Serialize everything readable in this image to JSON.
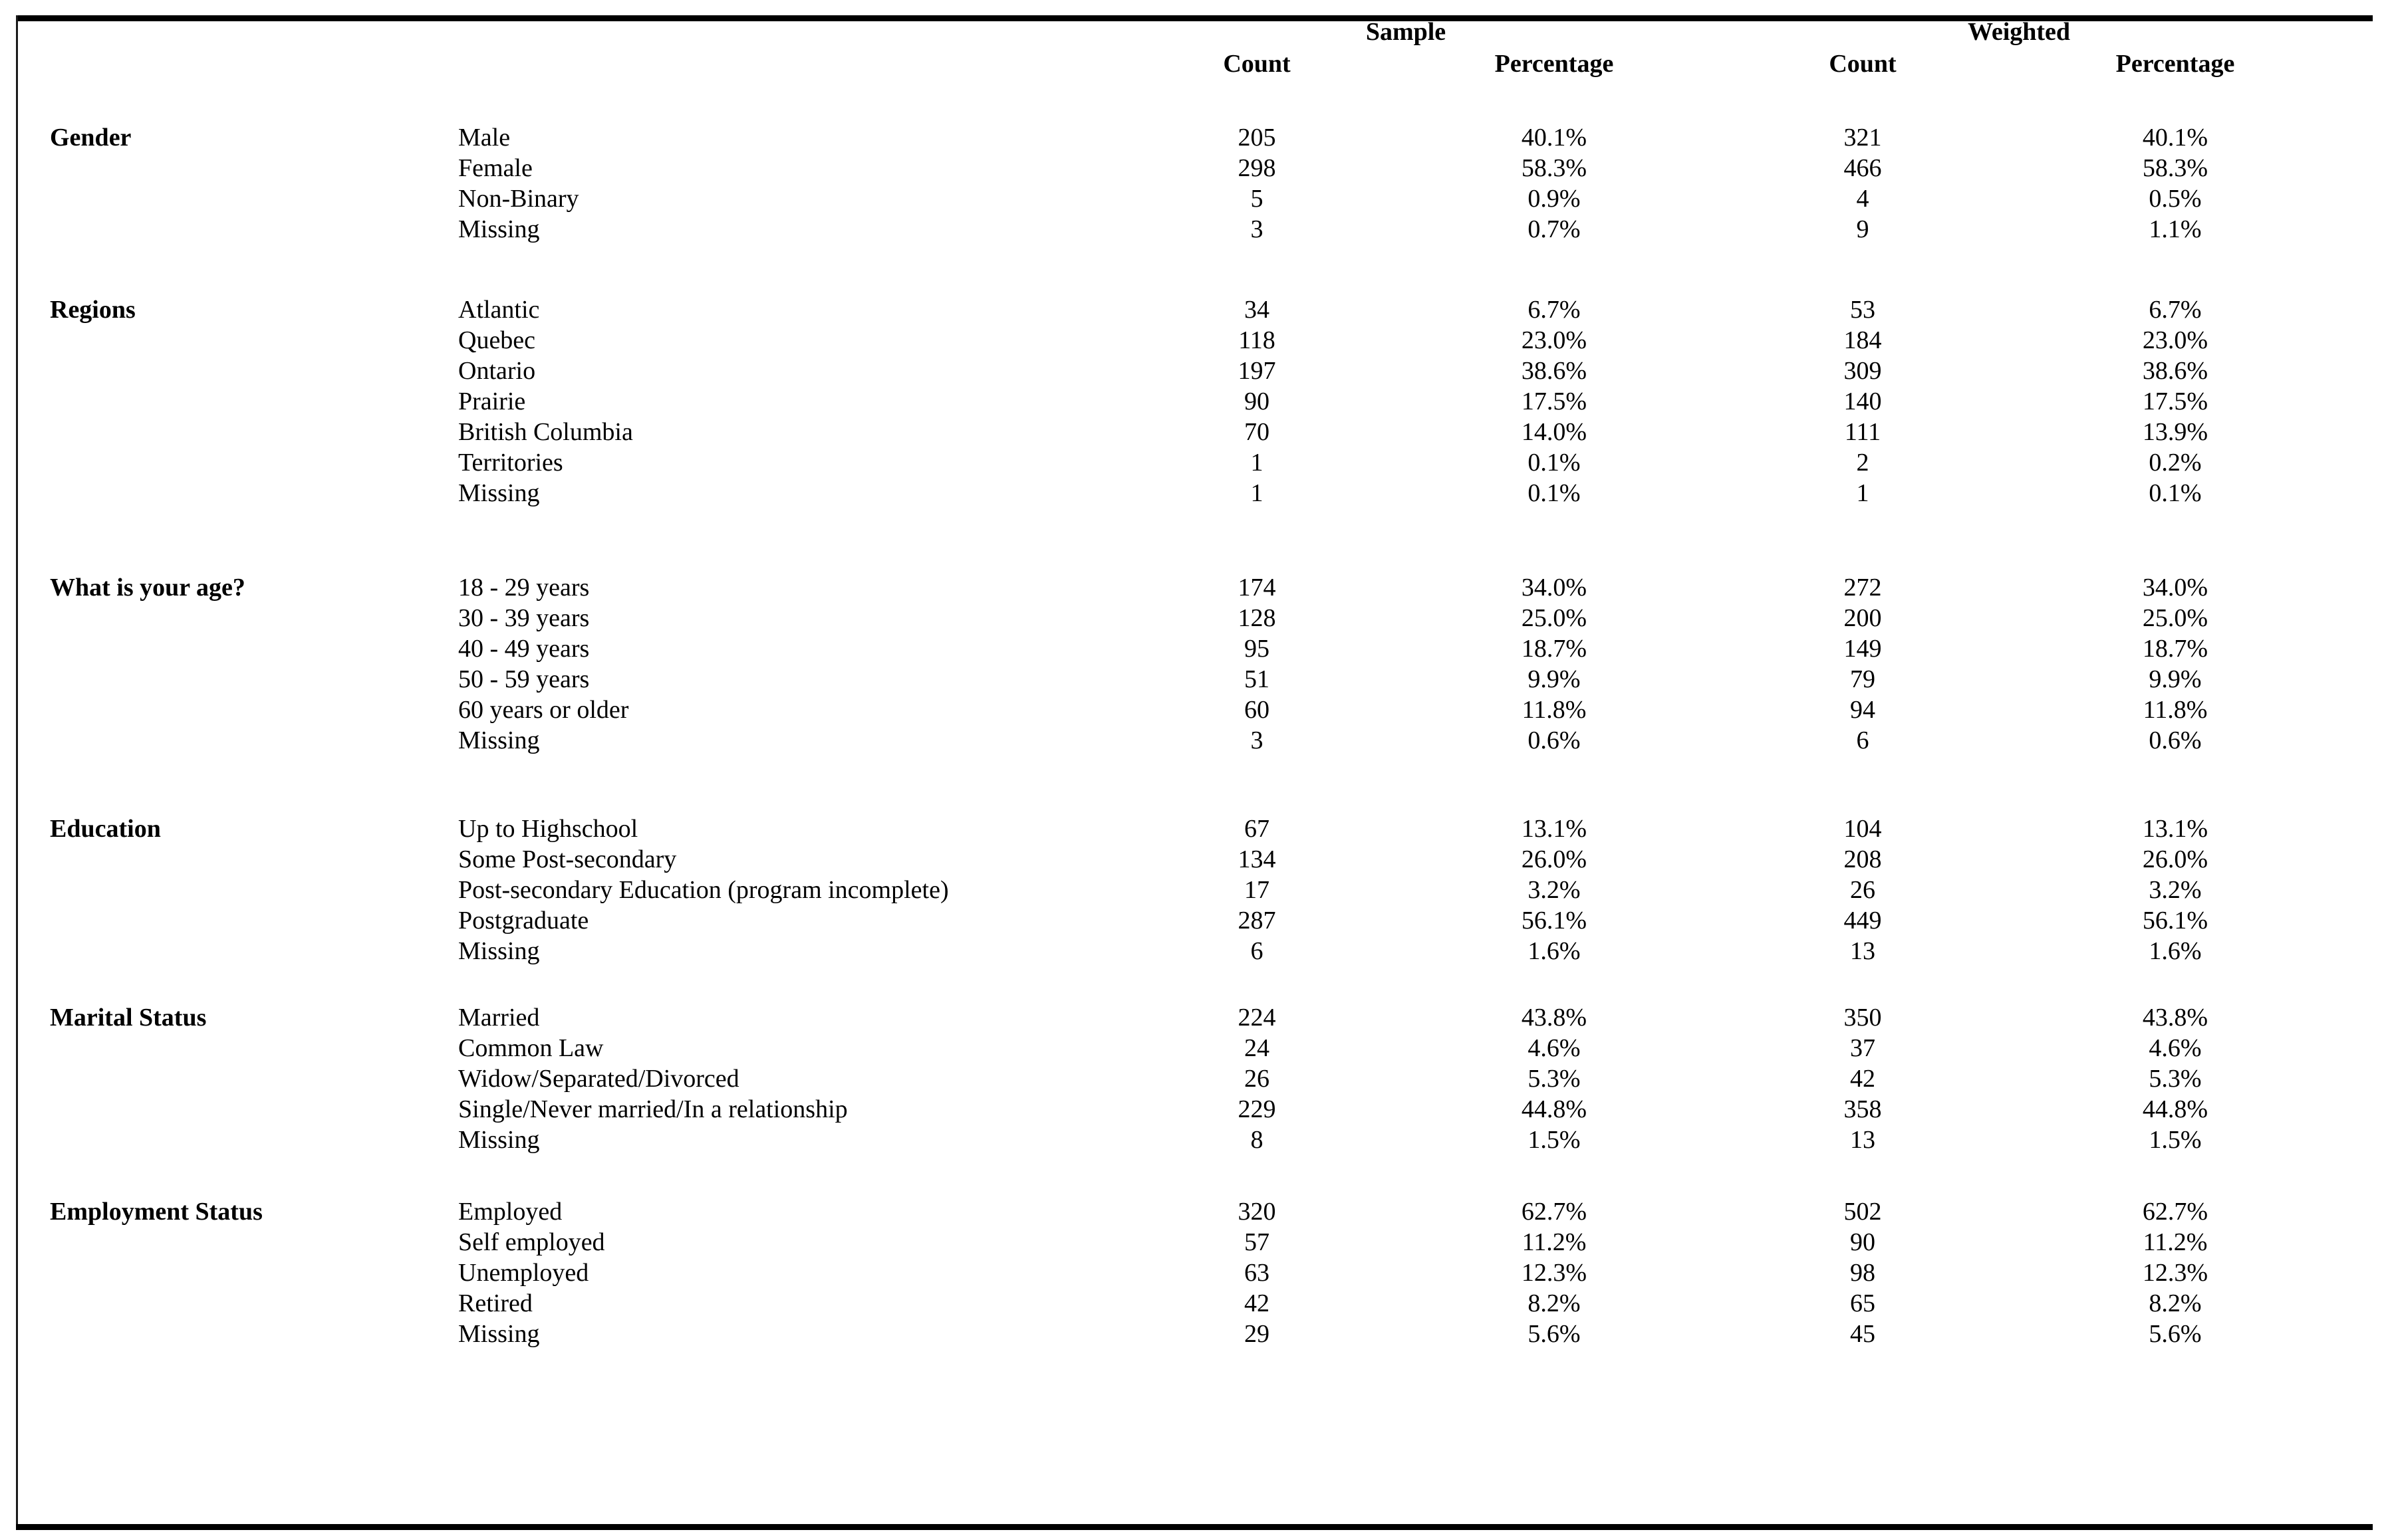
{
  "table": {
    "group_headers": {
      "sample": "Sample",
      "weighted": "Weighted"
    },
    "column_headers": {
      "sample_count": "Count",
      "sample_percentage": "Percentage",
      "weighted_count": "Count",
      "weighted_percentage": "Percentage"
    },
    "sections": [
      {
        "category": "Gender",
        "rows": [
          {
            "label": "Male",
            "sample_count": "205",
            "sample_percentage": "40.1%",
            "weighted_count": "321",
            "weighted_percentage": "40.1%"
          },
          {
            "label": "Female",
            "sample_count": "298",
            "sample_percentage": "58.3%",
            "weighted_count": "466",
            "weighted_percentage": "58.3%"
          },
          {
            "label": "Non-Binary",
            "sample_count": "5",
            "sample_percentage": "0.9%",
            "weighted_count": "4",
            "weighted_percentage": "0.5%"
          },
          {
            "label": "Missing",
            "sample_count": "3",
            "sample_percentage": "0.7%",
            "weighted_count": "9",
            "weighted_percentage": "1.1%"
          }
        ]
      },
      {
        "category": "Regions",
        "rows": [
          {
            "label": "Atlantic",
            "sample_count": "34",
            "sample_percentage": "6.7%",
            "weighted_count": "53",
            "weighted_percentage": "6.7%"
          },
          {
            "label": "Quebec",
            "sample_count": "118",
            "sample_percentage": "23.0%",
            "weighted_count": "184",
            "weighted_percentage": "23.0%"
          },
          {
            "label": "Ontario",
            "sample_count": "197",
            "sample_percentage": "38.6%",
            "weighted_count": "309",
            "weighted_percentage": "38.6%"
          },
          {
            "label": "Prairie",
            "sample_count": "90",
            "sample_percentage": "17.5%",
            "weighted_count": "140",
            "weighted_percentage": "17.5%"
          },
          {
            "label": "British Columbia",
            "sample_count": "70",
            "sample_percentage": "14.0%",
            "weighted_count": "111",
            "weighted_percentage": "13.9%"
          },
          {
            "label": "Territories",
            "sample_count": "1",
            "sample_percentage": "0.1%",
            "weighted_count": "2",
            "weighted_percentage": "0.2%"
          },
          {
            "label": "Missing",
            "sample_count": "1",
            "sample_percentage": "0.1%",
            "weighted_count": "1",
            "weighted_percentage": "0.1%"
          }
        ]
      },
      {
        "category": "What is your age?",
        "rows": [
          {
            "label": "18 - 29 years",
            "sample_count": "174",
            "sample_percentage": "34.0%",
            "weighted_count": "272",
            "weighted_percentage": "34.0%"
          },
          {
            "label": "30 - 39 years",
            "sample_count": "128",
            "sample_percentage": "25.0%",
            "weighted_count": "200",
            "weighted_percentage": "25.0%"
          },
          {
            "label": "40 - 49 years",
            "sample_count": "95",
            "sample_percentage": "18.7%",
            "weighted_count": "149",
            "weighted_percentage": "18.7%"
          },
          {
            "label": "50 - 59 years",
            "sample_count": "51",
            "sample_percentage": "9.9%",
            "weighted_count": "79",
            "weighted_percentage": "9.9%"
          },
          {
            "label": "60 years or older",
            "sample_count": "60",
            "sample_percentage": "11.8%",
            "weighted_count": "94",
            "weighted_percentage": "11.8%"
          },
          {
            "label": "Missing",
            "sample_count": "3",
            "sample_percentage": "0.6%",
            "weighted_count": "6",
            "weighted_percentage": "0.6%"
          }
        ]
      },
      {
        "category": "Education",
        "rows": [
          {
            "label": "Up to Highschool",
            "sample_count": "67",
            "sample_percentage": "13.1%",
            "weighted_count": "104",
            "weighted_percentage": "13.1%"
          },
          {
            "label": "Some Post-secondary",
            "sample_count": "134",
            "sample_percentage": "26.0%",
            "weighted_count": "208",
            "weighted_percentage": "26.0%"
          },
          {
            "label": "Post-secondary Education (program incomplete)",
            "sample_count": "17",
            "sample_percentage": "3.2%",
            "weighted_count": "26",
            "weighted_percentage": "3.2%"
          },
          {
            "label": "Postgraduate",
            "sample_count": "287",
            "sample_percentage": "56.1%",
            "weighted_count": "449",
            "weighted_percentage": "56.1%"
          },
          {
            "label": "Missing",
            "sample_count": "6",
            "sample_percentage": "1.6%",
            "weighted_count": "13",
            "weighted_percentage": "1.6%"
          }
        ]
      },
      {
        "category": "Marital Status",
        "rows": [
          {
            "label": "Married",
            "sample_count": "224",
            "sample_percentage": "43.8%",
            "weighted_count": "350",
            "weighted_percentage": "43.8%"
          },
          {
            "label": "Common Law",
            "sample_count": "24",
            "sample_percentage": "4.6%",
            "weighted_count": "37",
            "weighted_percentage": "4.6%"
          },
          {
            "label": "Widow/Separated/Divorced",
            "sample_count": "26",
            "sample_percentage": "5.3%",
            "weighted_count": "42",
            "weighted_percentage": "5.3%"
          },
          {
            "label": "Single/Never married/In a relationship",
            "sample_count": "229",
            "sample_percentage": "44.8%",
            "weighted_count": "358",
            "weighted_percentage": "44.8%"
          },
          {
            "label": "Missing",
            "sample_count": "8",
            "sample_percentage": "1.5%",
            "weighted_count": "13",
            "weighted_percentage": "1.5%"
          }
        ]
      },
      {
        "category": "Employment Status",
        "rows": [
          {
            "label": "Employed",
            "sample_count": "320",
            "sample_percentage": "62.7%",
            "weighted_count": "502",
            "weighted_percentage": "62.7%"
          },
          {
            "label": "Self employed",
            "sample_count": "57",
            "sample_percentage": "11.2%",
            "weighted_count": "90",
            "weighted_percentage": "11.2%"
          },
          {
            "label": "Unemployed",
            "sample_count": "63",
            "sample_percentage": "12.3%",
            "weighted_count": "98",
            "weighted_percentage": "12.3%"
          },
          {
            "label": "Retired",
            "sample_count": "42",
            "sample_percentage": "8.2%",
            "weighted_count": "65",
            "weighted_percentage": "8.2%"
          },
          {
            "label": "Missing",
            "sample_count": "29",
            "sample_percentage": "5.6%",
            "weighted_count": "45",
            "weighted_percentage": "5.6%"
          }
        ]
      }
    ]
  },
  "colors": {
    "text": "#000000",
    "background": "#ffffff",
    "rule": "#000000"
  }
}
